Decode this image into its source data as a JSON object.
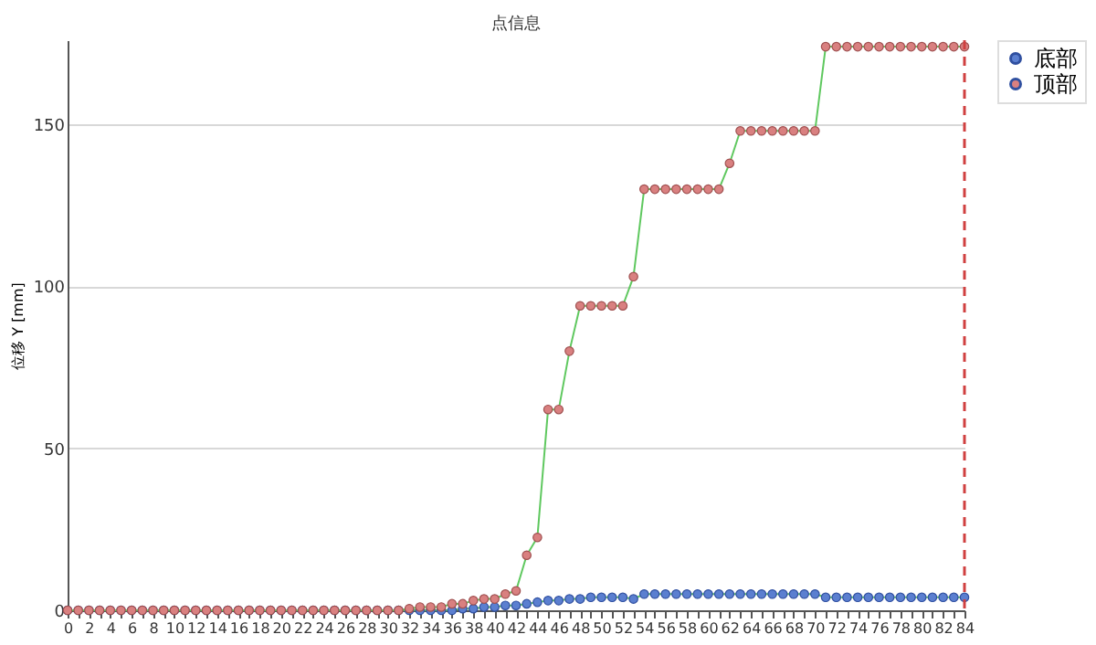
{
  "chart_data": {
    "type": "line",
    "title": "点信息",
    "ylabel": "位移 Y [mm]",
    "x": [
      0,
      1,
      2,
      3,
      4,
      5,
      6,
      7,
      8,
      9,
      10,
      11,
      12,
      13,
      14,
      15,
      16,
      17,
      18,
      19,
      20,
      21,
      22,
      23,
      24,
      25,
      26,
      27,
      28,
      29,
      30,
      31,
      32,
      33,
      34,
      35,
      36,
      37,
      38,
      39,
      40,
      41,
      42,
      43,
      44,
      45,
      46,
      47,
      48,
      49,
      50,
      51,
      52,
      53,
      54,
      55,
      56,
      57,
      58,
      59,
      60,
      61,
      62,
      63,
      64,
      65,
      66,
      67,
      68,
      69,
      70,
      71,
      72,
      73,
      74,
      75,
      76,
      77,
      78,
      79,
      80,
      81,
      82,
      83,
      84
    ],
    "series": [
      {
        "name": "底部",
        "color": "#5b7fd0",
        "values": [
          0,
          0,
          0,
          0,
          0,
          0,
          0,
          0,
          0,
          0,
          0,
          0,
          0,
          0,
          0,
          0,
          0,
          0,
          0,
          0,
          0,
          0,
          0,
          0,
          0,
          0,
          0,
          0,
          0,
          0,
          0,
          0,
          0,
          0,
          0,
          0,
          0,
          0.5,
          0.5,
          1,
          1,
          1.5,
          1.5,
          2,
          2.5,
          3,
          3,
          3.5,
          3.5,
          4,
          4,
          4,
          4,
          3.5,
          5,
          5,
          5,
          5,
          5,
          5,
          5,
          5,
          5,
          5,
          5,
          5,
          5,
          5,
          5,
          5,
          5,
          4,
          4,
          4,
          4,
          4,
          4,
          4,
          4,
          4,
          4,
          4,
          4,
          4,
          4
        ]
      },
      {
        "name": "顶部",
        "color": "#d98080",
        "values": [
          0,
          0,
          0,
          0,
          0,
          0,
          0,
          0,
          0,
          0,
          0,
          0,
          0,
          0,
          0,
          0,
          0,
          0,
          0,
          0,
          0,
          0,
          0,
          0,
          0,
          0,
          0,
          0,
          0,
          0,
          0,
          0,
          0.5,
          1,
          1,
          1,
          2,
          2,
          3,
          3.5,
          3.5,
          5,
          6,
          17,
          22.5,
          62,
          62,
          80,
          94,
          94,
          94,
          94,
          94,
          103,
          130,
          130,
          130,
          130,
          130,
          130,
          130,
          130,
          138,
          148,
          148,
          148,
          148,
          148,
          148,
          148,
          148,
          174,
          174,
          174,
          174,
          174,
          174,
          174,
          174,
          174,
          174,
          174,
          174,
          174,
          174
        ]
      }
    ],
    "xlim": [
      0,
      84
    ],
    "xticks": [
      0,
      {
        "value": 1,
        "label": null
      },
      2,
      {
        "value": 3,
        "label": null
      },
      4,
      {
        "value": 5,
        "label": null
      },
      6,
      {
        "value": 7,
        "label": null
      },
      8,
      {
        "value": 9,
        "label": null
      },
      10,
      {
        "value": 11,
        "label": null
      },
      12,
      {
        "value": 13,
        "label": null
      },
      14,
      {
        "value": 15,
        "label": null
      },
      16,
      {
        "value": 17,
        "label": null
      },
      18,
      {
        "value": 19,
        "label": null
      },
      20,
      {
        "value": 21,
        "label": null
      },
      22,
      {
        "value": 23,
        "label": null
      },
      24,
      {
        "value": 25,
        "label": null
      },
      26,
      {
        "value": 27,
        "label": null
      },
      28,
      {
        "value": 29,
        "label": null
      },
      30,
      {
        "value": 31,
        "label": null
      },
      32,
      {
        "value": 33,
        "label": null
      },
      34,
      {
        "value": 35,
        "label": null
      },
      36,
      {
        "value": 37,
        "label": null
      },
      38,
      {
        "value": 39,
        "label": null
      },
      40,
      {
        "value": 41,
        "label": null
      },
      42,
      {
        "value": 43,
        "label": null
      },
      44,
      {
        "value": 45,
        "label": null
      },
      46,
      {
        "value": 47,
        "label": null
      },
      48,
      {
        "value": 49,
        "label": null
      },
      50,
      {
        "value": 51,
        "label": null
      },
      52,
      {
        "value": 53,
        "label": null
      },
      54,
      {
        "value": 55,
        "label": null
      },
      56,
      {
        "value": 57,
        "label": null
      },
      58,
      {
        "value": 59,
        "label": null
      },
      60,
      {
        "value": 61,
        "label": null
      },
      62,
      {
        "value": 63,
        "label": null
      },
      64,
      {
        "value": 65,
        "label": null
      },
      66,
      {
        "value": 67,
        "label": null
      },
      68,
      {
        "value": 69,
        "label": null
      },
      70,
      {
        "value": 71,
        "label": null
      },
      72,
      {
        "value": 73,
        "label": null
      },
      74,
      {
        "value": 75,
        "label": null
      },
      76,
      {
        "value": 77,
        "label": null
      },
      78,
      {
        "value": 79,
        "label": null
      },
      80,
      {
        "value": 81,
        "label": null
      },
      82,
      {
        "value": 83,
        "label": null
      },
      84
    ],
    "ylim": [
      0,
      176
    ],
    "yticks": [
      0,
      50,
      100,
      150
    ],
    "grid": "y",
    "legend": "top right",
    "marker": "circle",
    "line_style": "solid",
    "ref_lines": [
      {
        "axis": "x",
        "value": 84,
        "color": "#d04040",
        "line_style": "dashed"
      }
    ]
  }
}
